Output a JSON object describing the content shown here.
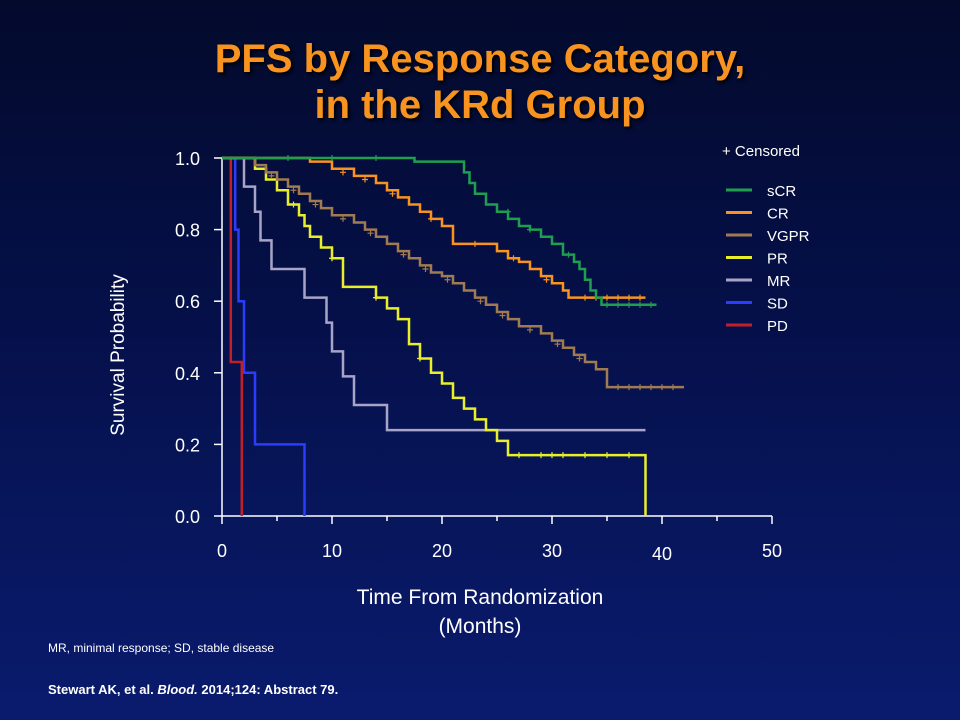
{
  "title_line1": "PFS by Response Category,",
  "title_line2": "in the KRd Group",
  "footnote": "MR, minimal response; SD, stable disease",
  "citation": {
    "authors": "Stewart AK, et al.",
    "journal": "Blood.",
    "details": "2014;124: Abstract 79."
  },
  "chart_data": {
    "type": "line",
    "subtype": "step",
    "xlabel_line1": "Time From Randomization",
    "xlabel_line2": "(Months)",
    "ylabel": "Survival Probability",
    "xlim": [
      0,
      50
    ],
    "ylim": [
      0,
      1.0
    ],
    "x_ticks": [
      "0",
      "10",
      "20",
      "30",
      "40",
      "50"
    ],
    "y_ticks": [
      "0.0",
      "0.2",
      "0.4",
      "0.6",
      "0.8",
      "1.0"
    ],
    "censored_label": "+ Censored",
    "legend_position": "right",
    "series": [
      {
        "name": "sCR",
        "color": "#1e9e4e",
        "points": [
          [
            0,
            1.0
          ],
          [
            17.5,
            1.0
          ],
          [
            17.5,
            0.99
          ],
          [
            21.5,
            0.99
          ],
          [
            22,
            0.96
          ],
          [
            22.5,
            0.93
          ],
          [
            23,
            0.9
          ],
          [
            24,
            0.87
          ],
          [
            25,
            0.85
          ],
          [
            26,
            0.83
          ],
          [
            27,
            0.81
          ],
          [
            28,
            0.8
          ],
          [
            29,
            0.78
          ],
          [
            30,
            0.76
          ],
          [
            31,
            0.73
          ],
          [
            32,
            0.71
          ],
          [
            32.5,
            0.69
          ],
          [
            33,
            0.66
          ],
          [
            33.5,
            0.63
          ],
          [
            34,
            0.61
          ],
          [
            34.5,
            0.61
          ],
          [
            34.5,
            0.59
          ],
          [
            39.5,
            0.59
          ]
        ],
        "censored": [
          [
            6,
            1.0
          ],
          [
            10,
            1.0
          ],
          [
            14,
            1.0
          ],
          [
            26,
            0.85
          ],
          [
            28,
            0.8
          ],
          [
            31.5,
            0.73
          ],
          [
            35,
            0.59
          ],
          [
            36,
            0.59
          ],
          [
            37,
            0.59
          ],
          [
            38,
            0.59
          ],
          [
            39,
            0.59
          ]
        ]
      },
      {
        "name": "CR",
        "color": "#f7931e",
        "points": [
          [
            0,
            1.0
          ],
          [
            8,
            1.0
          ],
          [
            8,
            0.99
          ],
          [
            10,
            0.97
          ],
          [
            12,
            0.95
          ],
          [
            14,
            0.93
          ],
          [
            15,
            0.91
          ],
          [
            16,
            0.89
          ],
          [
            17,
            0.87
          ],
          [
            18,
            0.85
          ],
          [
            19,
            0.83
          ],
          [
            20,
            0.81
          ],
          [
            21,
            0.79
          ],
          [
            21,
            0.76
          ],
          [
            24,
            0.76
          ],
          [
            25,
            0.74
          ],
          [
            26,
            0.72
          ],
          [
            27,
            0.71
          ],
          [
            28,
            0.69
          ],
          [
            29,
            0.67
          ],
          [
            30,
            0.65
          ],
          [
            31,
            0.63
          ],
          [
            31.5,
            0.61
          ],
          [
            38.5,
            0.61
          ]
        ],
        "censored": [
          [
            11,
            0.96
          ],
          [
            13,
            0.94
          ],
          [
            15.5,
            0.9
          ],
          [
            19,
            0.83
          ],
          [
            23,
            0.76
          ],
          [
            26.5,
            0.72
          ],
          [
            29.5,
            0.66
          ],
          [
            33,
            0.61
          ],
          [
            34,
            0.61
          ],
          [
            35,
            0.61
          ],
          [
            36,
            0.61
          ],
          [
            37,
            0.61
          ],
          [
            38,
            0.61
          ]
        ]
      },
      {
        "name": "VGPR",
        "color": "#a07a50",
        "points": [
          [
            0,
            1.0
          ],
          [
            2.5,
            1.0
          ],
          [
            3,
            0.98
          ],
          [
            4,
            0.96
          ],
          [
            5,
            0.94
          ],
          [
            6,
            0.92
          ],
          [
            7,
            0.9
          ],
          [
            8,
            0.88
          ],
          [
            9,
            0.86
          ],
          [
            10,
            0.84
          ],
          [
            12,
            0.82
          ],
          [
            13,
            0.8
          ],
          [
            14,
            0.78
          ],
          [
            15,
            0.76
          ],
          [
            16,
            0.74
          ],
          [
            17,
            0.72
          ],
          [
            18,
            0.7
          ],
          [
            19,
            0.68
          ],
          [
            20,
            0.67
          ],
          [
            21,
            0.65
          ],
          [
            22,
            0.63
          ],
          [
            23,
            0.61
          ],
          [
            24,
            0.59
          ],
          [
            25,
            0.57
          ],
          [
            26,
            0.55
          ],
          [
            27,
            0.53
          ],
          [
            29,
            0.51
          ],
          [
            30,
            0.49
          ],
          [
            31,
            0.47
          ],
          [
            32,
            0.45
          ],
          [
            33,
            0.43
          ],
          [
            34,
            0.41
          ],
          [
            35,
            0.39
          ],
          [
            35,
            0.36
          ],
          [
            42,
            0.36
          ]
        ],
        "censored": [
          [
            4.5,
            0.95
          ],
          [
            6.5,
            0.91
          ],
          [
            8.5,
            0.87
          ],
          [
            11,
            0.83
          ],
          [
            13.5,
            0.79
          ],
          [
            16.5,
            0.73
          ],
          [
            18.5,
            0.69
          ],
          [
            20.5,
            0.66
          ],
          [
            23.5,
            0.6
          ],
          [
            25.5,
            0.56
          ],
          [
            28,
            0.52
          ],
          [
            30.5,
            0.48
          ],
          [
            32.5,
            0.44
          ],
          [
            36,
            0.36
          ],
          [
            37,
            0.36
          ],
          [
            38,
            0.36
          ],
          [
            39,
            0.36
          ],
          [
            40,
            0.36
          ],
          [
            41,
            0.36
          ]
        ]
      },
      {
        "name": "PR",
        "color": "#e8ef2a",
        "points": [
          [
            0,
            1.0
          ],
          [
            2.5,
            1.0
          ],
          [
            3,
            0.97
          ],
          [
            4,
            0.94
          ],
          [
            5,
            0.91
          ],
          [
            6,
            0.87
          ],
          [
            7,
            0.84
          ],
          [
            7.5,
            0.81
          ],
          [
            8,
            0.78
          ],
          [
            9,
            0.75
          ],
          [
            10,
            0.72
          ],
          [
            11,
            0.68
          ],
          [
            11,
            0.64
          ],
          [
            13,
            0.64
          ],
          [
            14,
            0.61
          ],
          [
            15,
            0.58
          ],
          [
            16,
            0.55
          ],
          [
            17,
            0.52
          ],
          [
            17,
            0.48
          ],
          [
            18,
            0.44
          ],
          [
            19,
            0.4
          ],
          [
            20,
            0.37
          ],
          [
            21,
            0.33
          ],
          [
            22,
            0.3
          ],
          [
            23,
            0.27
          ],
          [
            24,
            0.24
          ],
          [
            25,
            0.21
          ],
          [
            26,
            0.19
          ],
          [
            26,
            0.17
          ],
          [
            38.5,
            0.17
          ],
          [
            38.5,
            0.0
          ]
        ],
        "censored": [
          [
            6.5,
            0.87
          ],
          [
            10,
            0.72
          ],
          [
            14,
            0.61
          ],
          [
            18,
            0.44
          ],
          [
            27,
            0.17
          ],
          [
            29,
            0.17
          ],
          [
            30,
            0.17
          ],
          [
            31,
            0.17
          ],
          [
            33,
            0.17
          ],
          [
            35,
            0.17
          ],
          [
            37,
            0.17
          ]
        ]
      },
      {
        "name": "MR",
        "color": "#a7a4c8",
        "points": [
          [
            0,
            1.0
          ],
          [
            2,
            1.0
          ],
          [
            2,
            0.92
          ],
          [
            3,
            0.92
          ],
          [
            3,
            0.85
          ],
          [
            3.5,
            0.85
          ],
          [
            3.5,
            0.77
          ],
          [
            4.5,
            0.77
          ],
          [
            4.5,
            0.69
          ],
          [
            7.5,
            0.69
          ],
          [
            7.5,
            0.61
          ],
          [
            9.5,
            0.61
          ],
          [
            9.5,
            0.54
          ],
          [
            10,
            0.54
          ],
          [
            10,
            0.46
          ],
          [
            11,
            0.46
          ],
          [
            11,
            0.39
          ],
          [
            12,
            0.39
          ],
          [
            12,
            0.31
          ],
          [
            15,
            0.31
          ],
          [
            15,
            0.24
          ],
          [
            38.5,
            0.24
          ]
        ],
        "censored": []
      },
      {
        "name": "SD",
        "color": "#2a3dff",
        "points": [
          [
            0,
            1.0
          ],
          [
            1.2,
            1.0
          ],
          [
            1.2,
            0.8
          ],
          [
            1.5,
            0.8
          ],
          [
            1.5,
            0.6
          ],
          [
            2,
            0.6
          ],
          [
            2,
            0.4
          ],
          [
            3,
            0.4
          ],
          [
            3,
            0.2
          ],
          [
            7.5,
            0.2
          ],
          [
            7.5,
            0.0
          ]
        ],
        "censored": []
      },
      {
        "name": "PD",
        "color": "#c0202a",
        "points": [
          [
            0,
            1.0
          ],
          [
            0.8,
            1.0
          ],
          [
            0.8,
            0.43
          ],
          [
            1.8,
            0.43
          ],
          [
            1.8,
            0.0
          ]
        ],
        "censored": []
      }
    ]
  }
}
